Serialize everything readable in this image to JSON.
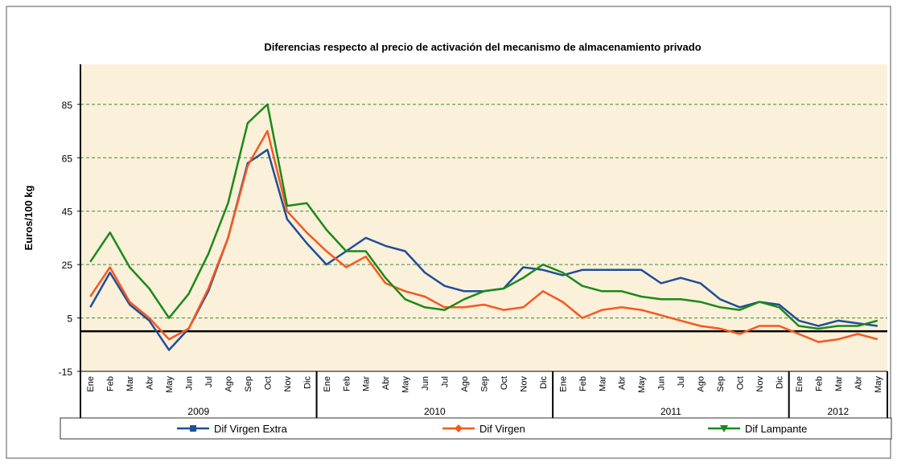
{
  "chart_data": {
    "type": "line",
    "title": "Diferencias respecto al precio de activación del mecanismo de almacenamiento privado",
    "y_label": "Euros/100 kg",
    "categories": [
      "Ene",
      "Feb",
      "Mar",
      "Abr",
      "May",
      "Jun",
      "Jul",
      "Ago",
      "Sep",
      "Oct",
      "Nov",
      "Dic",
      "Ene",
      "Feb",
      "Mar",
      "Abr",
      "May",
      "Jun",
      "Jul",
      "Ago",
      "Sep",
      "Oct",
      "Nov",
      "Dic",
      "Ene",
      "Feb",
      "Mar",
      "Abr",
      "May",
      "Jun",
      "Jul",
      "Ago",
      "Sep",
      "Oct",
      "Nov",
      "Dic",
      "Ene",
      "Feb",
      "Mar",
      "Abr",
      "May"
    ],
    "years": [
      "2009",
      "2010",
      "2011",
      "2012"
    ],
    "series": [
      {
        "name": "Dif Virgen Extra",
        "color": "#1f4e9a",
        "marker": "square",
        "values": [
          9,
          22,
          10,
          4,
          -7,
          1,
          15,
          35,
          63,
          68,
          42,
          33,
          25,
          30,
          35,
          32,
          30,
          22,
          17,
          15,
          15,
          16,
          24,
          23,
          21,
          23,
          23,
          23,
          23,
          18,
          20,
          18,
          12,
          9,
          11,
          10,
          4,
          2,
          4,
          3,
          2
        ]
      },
      {
        "name": "Dif Virgen",
        "color": "#f5581f",
        "marker": "diamond",
        "values": [
          13,
          24,
          11,
          5,
          -3,
          1,
          16,
          35,
          62,
          75,
          45,
          37,
          30,
          24,
          28,
          18,
          15,
          13,
          9,
          9,
          10,
          8,
          9,
          15,
          11,
          5,
          8,
          9,
          8,
          6,
          4,
          2,
          1,
          -1,
          2,
          2,
          -1,
          -4,
          -3,
          -1,
          -3
        ]
      },
      {
        "name": "Dif Lampante",
        "color": "#1a8a1a",
        "marker": "triangle-down",
        "values": [
          26,
          37,
          24,
          16,
          5,
          14,
          29,
          48,
          78,
          85,
          47,
          48,
          38,
          30,
          30,
          20,
          12,
          9,
          8,
          12,
          15,
          16,
          20,
          25,
          22,
          17,
          15,
          15,
          13,
          12,
          12,
          11,
          9,
          8,
          11,
          9,
          2,
          1,
          2,
          2,
          4
        ]
      }
    ],
    "ylim": [
      -15,
      100
    ],
    "yticks": [
      -15,
      5,
      25,
      45,
      65,
      85
    ],
    "grid": true
  }
}
